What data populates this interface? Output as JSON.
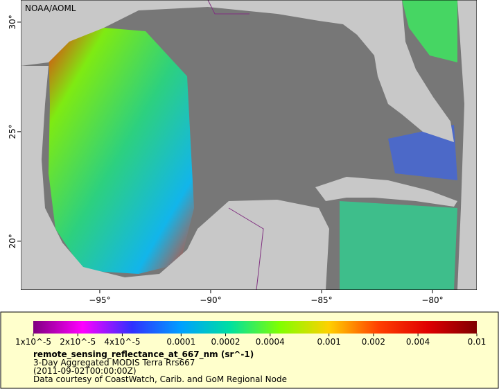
{
  "map": {
    "credit": "NOAA/AOML",
    "xlim": [
      -98.56,
      -78
    ],
    "ylim": [
      17.78,
      31.01
    ],
    "xticks": [
      {
        "value": -95,
        "label": "−95°"
      },
      {
        "value": -90,
        "label": "−90°"
      },
      {
        "value": -85,
        "label": "−85°"
      },
      {
        "value": -80,
        "label": "−80°"
      }
    ],
    "yticks": [
      {
        "value": 20,
        "label": "20°"
      },
      {
        "value": 25,
        "label": "25°"
      },
      {
        "value": 30,
        "label": "30°"
      }
    ]
  },
  "colorbar": {
    "scale": "log",
    "lim": [
      1e-05,
      0.01
    ],
    "colors": [
      "#800080",
      "#ff00ff",
      "#3030ff",
      "#00a0ff",
      "#00e0a0",
      "#80ff00",
      "#ffd000",
      "#ff4000",
      "#e00000",
      "#800000"
    ],
    "ticks": [
      {
        "value": 1e-05,
        "label": "1x10^-5"
      },
      {
        "value": 2e-05,
        "label": "2x10^-5"
      },
      {
        "value": 4e-05,
        "label": "4x10^-5"
      },
      0.0001,
      0.0002,
      0.0004,
      0.001,
      0.002,
      0.004,
      0.01
    ],
    "variable": "remote_sensing_reflectance_at_667_nm (sr^-1)",
    "description": "3-Day Aggregated MODIS Terra Rrs667",
    "time": "(2011-09-02T00:00:00Z)",
    "source": "Data courtesy of CoastWatch, Carib. and GoM Regional Node"
  }
}
